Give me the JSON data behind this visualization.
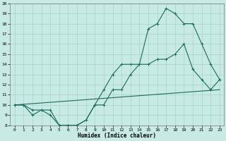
{
  "xlabel": "Humidex (Indice chaleur)",
  "background_color": "#c8eae4",
  "grid_color": "#a0ccc4",
  "line_color": "#1a6b5a",
  "xlim": [
    -0.5,
    23.5
  ],
  "ylim": [
    8,
    20
  ],
  "xticks": [
    0,
    1,
    2,
    3,
    4,
    5,
    6,
    7,
    8,
    9,
    10,
    11,
    12,
    13,
    14,
    15,
    16,
    17,
    18,
    19,
    20,
    21,
    22,
    23
  ],
  "yticks": [
    8,
    9,
    10,
    11,
    12,
    13,
    14,
    15,
    16,
    17,
    18,
    19,
    20
  ],
  "line1_x": [
    0,
    1,
    2,
    3,
    4,
    5,
    6,
    7,
    8,
    9,
    10,
    11,
    12,
    13,
    14,
    15,
    16,
    17,
    18,
    19,
    20,
    21,
    22,
    23
  ],
  "line1_y": [
    10,
    10,
    9.5,
    9.5,
    9,
    8,
    8,
    8,
    8.5,
    10,
    10,
    11.5,
    11.5,
    13,
    14,
    14,
    14.5,
    14.5,
    15,
    16,
    13.5,
    12.5,
    11.5,
    12.5
  ],
  "line2_x": [
    0,
    1,
    2,
    3,
    4,
    5,
    6,
    7,
    8,
    9,
    10,
    11,
    12,
    13,
    14,
    15,
    16,
    17,
    18,
    19,
    20,
    21,
    22,
    23
  ],
  "line2_y": [
    10,
    10,
    9,
    9.5,
    9.5,
    8,
    8,
    8,
    8.5,
    10,
    11.5,
    13,
    14,
    14,
    14,
    17.5,
    18,
    19.5,
    19,
    18,
    18,
    16,
    14,
    12.5
  ],
  "line3_x": [
    0,
    23
  ],
  "line3_y": [
    10,
    11.5
  ]
}
